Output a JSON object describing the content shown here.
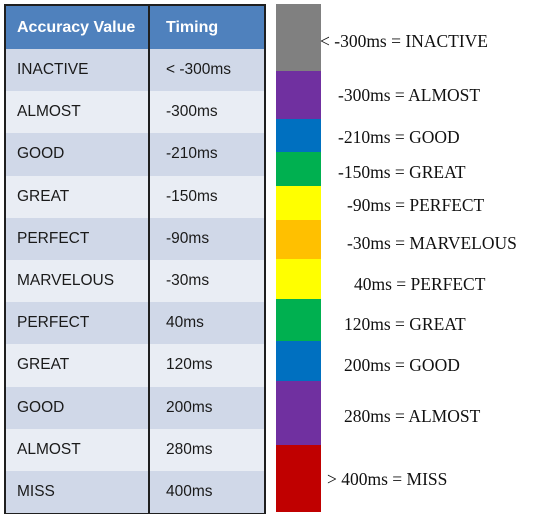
{
  "table": {
    "headers": [
      "Accuracy Value",
      "Timing"
    ],
    "rows": [
      {
        "accuracy": "INACTIVE",
        "timing": "< -300ms"
      },
      {
        "accuracy": "ALMOST",
        "timing": "-300ms"
      },
      {
        "accuracy": "GOOD",
        "timing": "-210ms"
      },
      {
        "accuracy": "GREAT",
        "timing": "-150ms"
      },
      {
        "accuracy": "PERFECT",
        "timing": "-90ms"
      },
      {
        "accuracy": "MARVELOUS",
        "timing": "-30ms"
      },
      {
        "accuracy": "PERFECT",
        "timing": "40ms"
      },
      {
        "accuracy": "GREAT",
        "timing": "120ms"
      },
      {
        "accuracy": "GOOD",
        "timing": "200ms"
      },
      {
        "accuracy": "ALMOST",
        "timing": "280ms"
      },
      {
        "accuracy": "MISS",
        "timing": "400ms"
      }
    ]
  },
  "timeline": {
    "segments": [
      {
        "name": "inactive",
        "color": "#808080",
        "label": "< -300ms = INACTIVE"
      },
      {
        "name": "almost-early",
        "color": "#7030a0",
        "label": "-300ms = ALMOST"
      },
      {
        "name": "good-early",
        "color": "#0070c0",
        "label": "-210ms = GOOD"
      },
      {
        "name": "great-early",
        "color": "#00b050",
        "label": "-150ms = GREAT"
      },
      {
        "name": "perfect-early",
        "color": "#ffff00",
        "label": "-90ms = PERFECT"
      },
      {
        "name": "marvelous",
        "color": "#ffc000",
        "label": "-30ms = MARVELOUS"
      },
      {
        "name": "perfect-late",
        "color": "#ffff00",
        "label": "40ms = PERFECT"
      },
      {
        "name": "great-late",
        "color": "#00b050",
        "label": "120ms = GREAT"
      },
      {
        "name": "good-late",
        "color": "#0070c0",
        "label": "200ms = GOOD"
      },
      {
        "name": "almost-late",
        "color": "#7030a0",
        "label": "280ms = ALMOST"
      },
      {
        "name": "miss",
        "color": "#c00000",
        "label": "> 400ms = MISS"
      }
    ]
  }
}
